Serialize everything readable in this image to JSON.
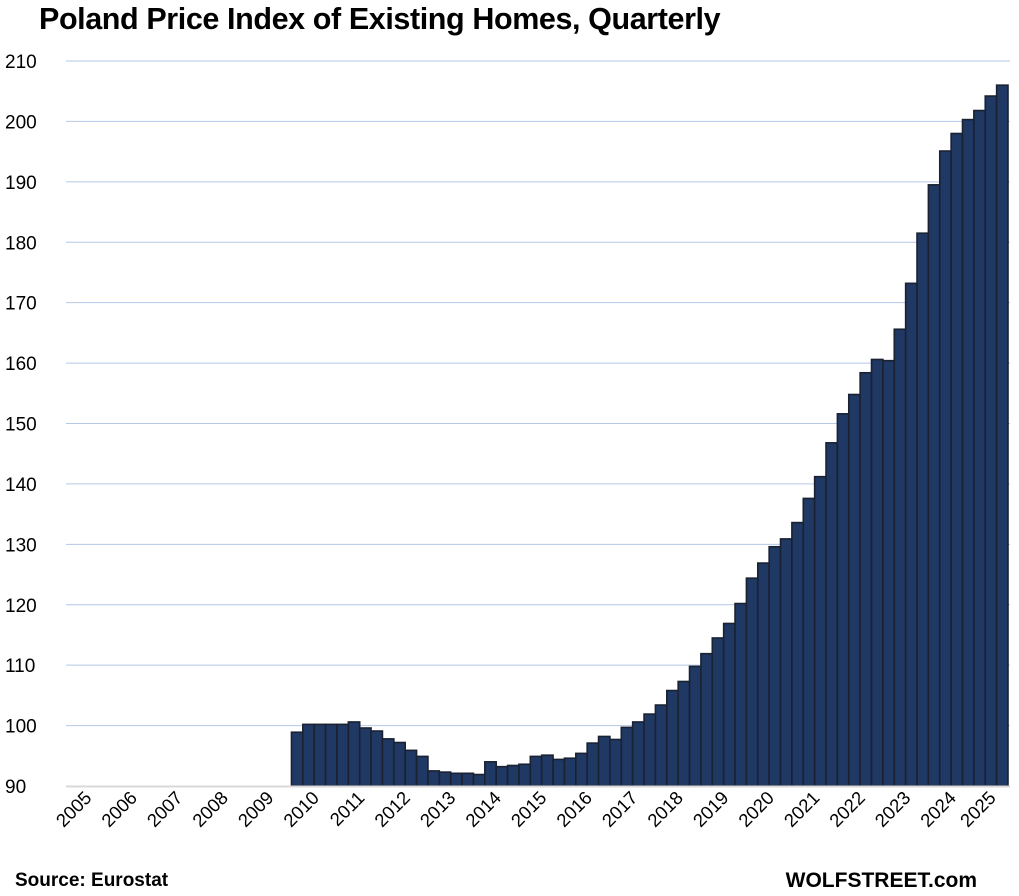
{
  "chart_data": {
    "type": "bar",
    "title": "Poland Price Index of Existing Homes, Quarterly",
    "xlabel": "",
    "ylabel": "",
    "ylim": [
      90,
      210
    ],
    "yticks": [
      "90",
      "100",
      "110",
      "120",
      "130",
      "140",
      "150",
      "160",
      "170",
      "180",
      "190",
      "200",
      "210"
    ],
    "ytick_values": [
      90,
      100,
      110,
      120,
      130,
      140,
      150,
      160,
      170,
      180,
      190,
      200,
      210
    ],
    "xtick_labels": [
      "2005",
      "2006",
      "2007",
      "2008",
      "2009",
      "2010",
      "2011",
      "2012",
      "2013",
      "2014",
      "2015",
      "2016",
      "2017",
      "2018",
      "2019",
      "2020",
      "2021",
      "2022",
      "2023",
      "2024",
      "2025"
    ],
    "grid": true,
    "legend": "none",
    "series": [
      {
        "name": "Price Index of Existing Homes",
        "color": "#1f3864",
        "categories": [
          "2005Q1",
          "2005Q2",
          "2005Q3",
          "2005Q4",
          "2006Q1",
          "2006Q2",
          "2006Q3",
          "2006Q4",
          "2007Q1",
          "2007Q2",
          "2007Q3",
          "2007Q4",
          "2008Q1",
          "2008Q2",
          "2008Q3",
          "2008Q4",
          "2009Q1",
          "2009Q2",
          "2009Q3",
          "2009Q4",
          "2010Q1",
          "2010Q2",
          "2010Q3",
          "2010Q4",
          "2011Q1",
          "2011Q2",
          "2011Q3",
          "2011Q4",
          "2012Q1",
          "2012Q2",
          "2012Q3",
          "2012Q4",
          "2013Q1",
          "2013Q2",
          "2013Q3",
          "2013Q4",
          "2014Q1",
          "2014Q2",
          "2014Q3",
          "2014Q4",
          "2015Q1",
          "2015Q2",
          "2015Q3",
          "2015Q4",
          "2016Q1",
          "2016Q2",
          "2016Q3",
          "2016Q4",
          "2017Q1",
          "2017Q2",
          "2017Q3",
          "2017Q4",
          "2018Q1",
          "2018Q2",
          "2018Q3",
          "2018Q4",
          "2019Q1",
          "2019Q2",
          "2019Q3",
          "2019Q4",
          "2020Q1",
          "2020Q2",
          "2020Q3",
          "2020Q4",
          "2021Q1",
          "2021Q2",
          "2021Q3",
          "2021Q4",
          "2022Q1",
          "2022Q2",
          "2022Q3",
          "2022Q4",
          "2023Q1",
          "2023Q2",
          "2023Q3",
          "2023Q4",
          "2024Q1",
          "2024Q2",
          "2024Q3",
          "2024Q4",
          "2025Q1",
          "2025Q2",
          "2025Q3"
        ],
        "values": [
          null,
          null,
          null,
          null,
          null,
          null,
          null,
          null,
          null,
          null,
          null,
          null,
          null,
          null,
          null,
          null,
          null,
          null,
          null,
          null,
          98.9,
          100.2,
          100.2,
          100.2,
          100.2,
          100.6,
          99.6,
          99.1,
          97.8,
          97.2,
          95.9,
          94.9,
          92.5,
          92.3,
          92.1,
          92.1,
          91.9,
          94.0,
          93.2,
          93.4,
          93.6,
          94.9,
          95.1,
          94.4,
          94.6,
          95.4,
          97.1,
          98.2,
          97.7,
          99.7,
          100.6,
          101.9,
          103.4,
          105.8,
          107.3,
          109.8,
          111.9,
          114.5,
          116.9,
          120.2,
          124.4,
          126.9,
          129.6,
          130.9,
          133.6,
          137.6,
          141.2,
          146.8,
          151.6,
          154.8,
          158.4,
          160.6,
          160.4,
          165.6,
          173.2,
          181.5,
          189.5,
          195.1,
          198.0,
          200.3,
          201.8,
          204.2,
          206.0
        ]
      }
    ]
  },
  "footer": {
    "source": "Source: Eurostat",
    "brand": "WOLFSTREET.com"
  },
  "style": {
    "bar_fill": "#1f3864",
    "bar_stroke": "#1a2232",
    "grid_color": "#b4c7e7",
    "axis_color": "#d9d9d9"
  }
}
